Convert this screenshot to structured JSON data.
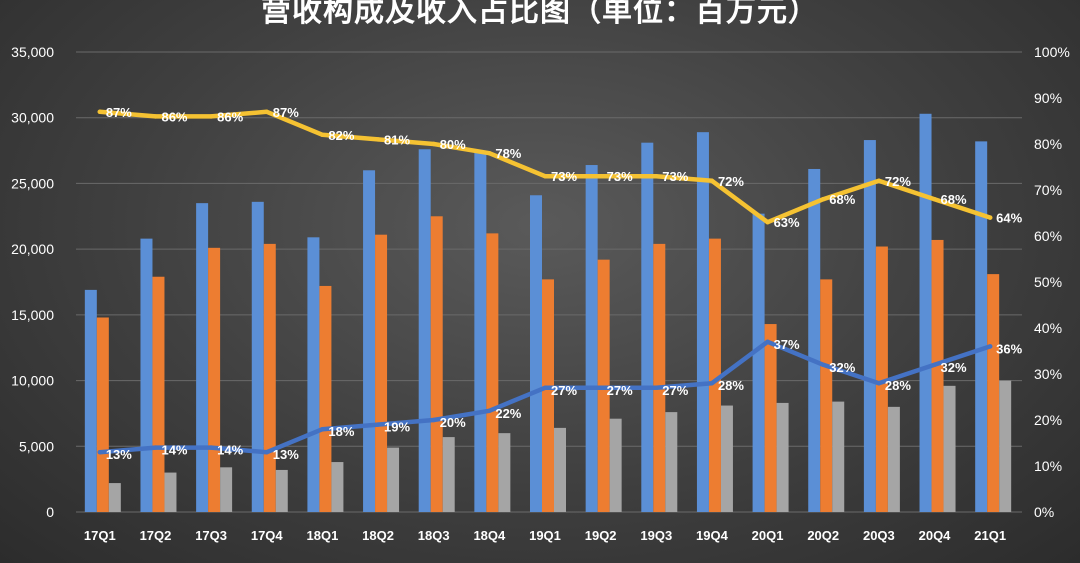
{
  "chart_data": {
    "type": "bar",
    "title": "营收构成及收入占比图（单位：百万元）",
    "categories": [
      "17Q1",
      "17Q2",
      "17Q3",
      "17Q4",
      "18Q1",
      "18Q2",
      "18Q3",
      "18Q4",
      "19Q1",
      "19Q2",
      "19Q3",
      "19Q4",
      "20Q1",
      "20Q2",
      "20Q3",
      "20Q4",
      "21Q1"
    ],
    "y_left": {
      "ylim": [
        0,
        35000
      ],
      "ticks": [
        "0",
        "5,000",
        "10,000",
        "15,000",
        "20,000",
        "25,000",
        "30,000",
        "35,000"
      ]
    },
    "y_right": {
      "ylim": [
        0,
        100
      ],
      "ticks": [
        "0%",
        "10%",
        "20%",
        "30%",
        "40%",
        "50%",
        "60%",
        "70%",
        "80%",
        "90%",
        "100%"
      ]
    },
    "bar_series": [
      {
        "color": "#5b8fd6",
        "values": [
          16900,
          20800,
          23500,
          23600,
          20900,
          26000,
          27600,
          27400,
          24100,
          26400,
          28100,
          28900,
          22700,
          26100,
          28300,
          30300,
          28200
        ]
      },
      {
        "color": "#ed7d31",
        "values": [
          14800,
          17900,
          20100,
          20400,
          17200,
          21100,
          22500,
          21200,
          17700,
          19200,
          20400,
          20800,
          14300,
          17700,
          20200,
          20700,
          18100
        ]
      },
      {
        "color": "#a5a5a5",
        "values": [
          2200,
          3000,
          3400,
          3200,
          3800,
          4900,
          5700,
          6000,
          6400,
          7100,
          7600,
          8100,
          8300,
          8400,
          8000,
          9600,
          10000
        ]
      }
    ],
    "line_series": [
      {
        "color": "#f5c232",
        "values": [
          87,
          86,
          86,
          87,
          82,
          81,
          80,
          78,
          73,
          73,
          73,
          72,
          63,
          68,
          72,
          68,
          64
        ],
        "labels": [
          "87%",
          "86%",
          "86%",
          "87%",
          "82%",
          "81%",
          "80%",
          "78%",
          "73%",
          "73%",
          "73%",
          "72%",
          "63%",
          "68%",
          "72%",
          "68%",
          "64%"
        ]
      },
      {
        "color": "#4472c4",
        "values": [
          13,
          14,
          14,
          13,
          18,
          19,
          20,
          22,
          27,
          27,
          27,
          28,
          37,
          32,
          28,
          32,
          36
        ],
        "labels": [
          "13%",
          "14%",
          "14%",
          "13%",
          "18%",
          "19%",
          "20%",
          "22%",
          "27%",
          "27%",
          "27%",
          "28%",
          "37%",
          "32%",
          "28%",
          "32%",
          "36%"
        ]
      }
    ],
    "grid": true,
    "legend": "none"
  }
}
